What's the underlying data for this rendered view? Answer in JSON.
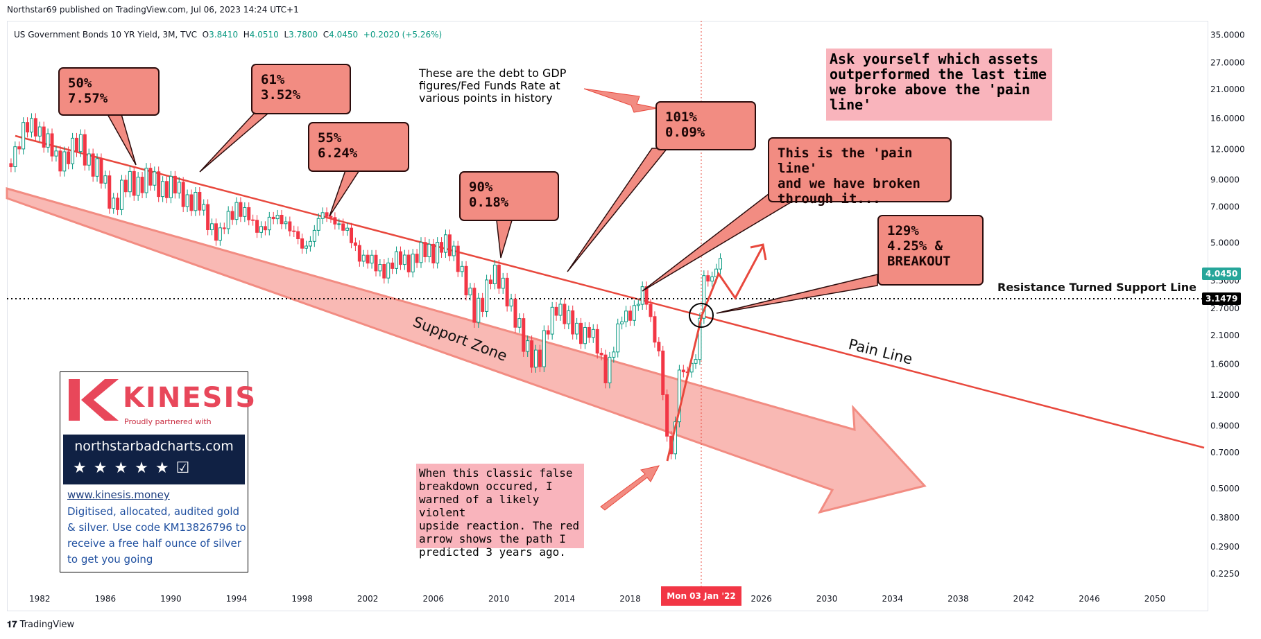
{
  "header": {
    "published": "Northstar69 published on TradingView.com, Jul 06, 2023 14:24 UTC+1"
  },
  "legend": {
    "symbol": "US Government Bonds 10 YR Yield, 3M, TVC",
    "o_label": "O",
    "o": "3.8410",
    "h_label": "H",
    "h": "4.0510",
    "l_label": "L",
    "l": "3.7800",
    "c_label": "C",
    "c": "4.0450",
    "change": "+0.2020 (+5.26%)"
  },
  "colors": {
    "up": "#089981",
    "down": "#f23645",
    "annotation": "#e8483d",
    "zone": "#f7a19b",
    "callout": "#f28c82",
    "pink_box": "#f9b4bc"
  },
  "chart_data": {
    "type": "line",
    "title": "",
    "xlabel": "",
    "ylabel": "",
    "scale": "log",
    "xlim": [
      1980.0,
      2053.0
    ],
    "ylim": [
      0.2,
      40
    ],
    "x_ticks": [
      "1982",
      "1986",
      "1990",
      "1994",
      "1998",
      "2002",
      "2006",
      "2010",
      "2014",
      "2018",
      "2026",
      "2030",
      "2034",
      "2038",
      "2042",
      "2046",
      "2050"
    ],
    "y_ticks": [
      "35.0000",
      "27.0000",
      "21.0000",
      "16.0000",
      "12.0000",
      "9.0000",
      "7.0000",
      "5.0000",
      "3.5000",
      "2.7000",
      "2.1000",
      "1.6000",
      "1.2000",
      "0.9000",
      "0.7000",
      "0.5000",
      "0.3800",
      "0.2900",
      "0.2250"
    ],
    "series": [
      {
        "x": [
          1980.0,
          1981.0,
          1981.8,
          1983.0,
          1984.5,
          1985.5,
          1986.5,
          1987.5,
          1988.5,
          1990.0,
          1991.5,
          1993.0,
          1994.0,
          1995.0,
          1997.0,
          1998.0,
          1999.0,
          2000.0,
          2001.0,
          2002.5,
          2003.5,
          2005.0,
          2006.5,
          2007.5,
          2008.5,
          2009.5,
          2010.5,
          2011.5,
          2012.5,
          2013.5,
          2014.5,
          2015.5,
          2016.5,
          2017.5,
          2018.8,
          2019.8,
          2020.3,
          2020.6,
          2021.0,
          2021.5,
          2022.0,
          2022.5,
          2023.0,
          2023.5
        ],
        "y": [
          10.5,
          14,
          15.3,
          10.8,
          12.5,
          9.8,
          7.3,
          8.8,
          9.0,
          8.4,
          7.3,
          5.3,
          7.3,
          5.8,
          6.3,
          4.6,
          6.2,
          6.4,
          5.0,
          3.9,
          4.1,
          4.4,
          4.9,
          4.4,
          2.5,
          3.7,
          3.2,
          1.9,
          1.7,
          2.9,
          2.2,
          2.2,
          1.5,
          2.4,
          3.1,
          1.8,
          0.7,
          0.66,
          1.6,
          1.5,
          1.6,
          3.8,
          3.6,
          4.05
        ]
      }
    ],
    "current_price": "4.0450",
    "support_level": "3.1479",
    "cursor_date": "Mon 03 Jan '22"
  },
  "annotations": {
    "callouts": [
      "50%\n7.57%",
      "61%\n3.52%",
      "55%\n6.24%",
      "90%\n0.18%",
      "101%\n0.09%",
      "This is the 'pain line'\nand we have broken\nthrough it...",
      "129%\n4.25% &\nBREAKOUT"
    ],
    "debt_note": "These are the debt to GDP\nfigures/Fed Funds Rate at\nvarious points in history",
    "ask_note": "Ask yourself which assets\noutperformed the last time\nwe broke above the 'pain\nline'",
    "breakdown_note": "When this classic false\nbreakdown occured, I\nwarned of a likely violent\nupside reaction. The red\narrow shows the path I\npredicted 3 years ago.",
    "support_zone": "Support Zone",
    "pain_line": "Pain Line",
    "resistance": "Resistance Turned Support Line"
  },
  "ad": {
    "brand": "KINESIS",
    "tagline": "Proudly partnered with",
    "site": "northstarbadcharts.com",
    "stars": "★★★★★☑",
    "link": "www.kinesis.money",
    "body": "Digitised, allocated, audited gold & silver. Use code KM13826796 to receive a free half ounce of silver to get you going"
  },
  "footer": {
    "brand": "TradingView"
  }
}
